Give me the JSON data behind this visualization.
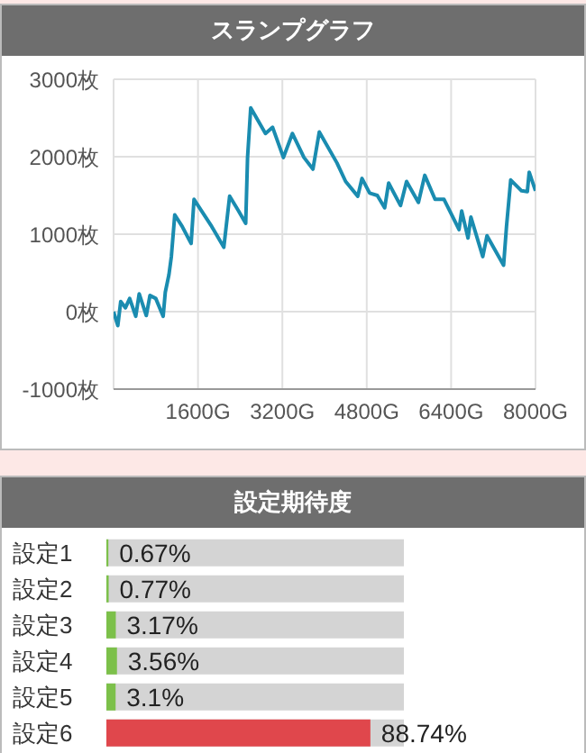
{
  "chart_data": [
    {
      "type": "line",
      "title": "スランプグラフ",
      "x": [
        0,
        80,
        135,
        225,
        305,
        420,
        485,
        620,
        690,
        800,
        940,
        980,
        1050,
        1095,
        1160,
        1300,
        1470,
        1525,
        1860,
        2090,
        2200,
        2370,
        2505,
        2540,
        2600,
        2880,
        3015,
        3220,
        3390,
        3610,
        3780,
        3900,
        4235,
        4400,
        4630,
        4710,
        4855,
        5000,
        5140,
        5215,
        5440,
        5555,
        5780,
        5900,
        6095,
        6265,
        6550,
        6600,
        6720,
        6775,
        7000,
        7080,
        7395,
        7450,
        7530,
        7735,
        7845,
        7880,
        8000
      ],
      "series": [
        {
          "color": "#1a8cb0",
          "values": [
            0,
            -180,
            130,
            50,
            170,
            -60,
            230,
            -50,
            210,
            170,
            -60,
            250,
            480,
            710,
            1250,
            1100,
            880,
            1450,
            1100,
            830,
            1490,
            1300,
            1140,
            1990,
            2630,
            2300,
            2380,
            1990,
            2300,
            1990,
            1840,
            2320,
            1920,
            1680,
            1490,
            1720,
            1530,
            1500,
            1340,
            1660,
            1370,
            1680,
            1410,
            1760,
            1450,
            1450,
            1060,
            1300,
            950,
            1220,
            710,
            980,
            600,
            1100,
            1700,
            1560,
            1550,
            1800,
            1560
          ]
        }
      ],
      "xlim": [
        0,
        8000
      ],
      "xticks": [
        {
          "value": 0,
          "label": null
        },
        {
          "value": 1600,
          "label": "1600G"
        },
        {
          "value": 3200,
          "label": "3200G"
        },
        {
          "value": 4800,
          "label": "4800G"
        },
        {
          "value": 6400,
          "label": "6400G"
        },
        {
          "value": 8000,
          "label": "8000G"
        }
      ],
      "ylim": [
        -1000,
        3000
      ],
      "yticks": [
        {
          "value": -1000,
          "label": "-1000枚"
        },
        {
          "value": 0,
          "label": "0枚"
        },
        {
          "value": 1000,
          "label": "1000枚"
        },
        {
          "value": 2000,
          "label": "2000枚"
        },
        {
          "value": 3000,
          "label": "3000枚"
        }
      ],
      "grid": true,
      "marker": "none",
      "line_style": "solid"
    },
    {
      "type": "bar",
      "title": "設定期待度",
      "orientation": "horizontal",
      "categories": [
        "設定1",
        "設定2",
        "設定3",
        "設定4",
        "設定5",
        "設定6"
      ],
      "values": [
        0.67,
        0.77,
        3.17,
        3.56,
        3.1,
        88.74
      ],
      "colors": [
        "#7cc04a",
        "#7cc04a",
        "#7cc04a",
        "#7cc04a",
        "#7cc04a",
        "#e0474c"
      ],
      "value_labels": [
        "0.67%",
        "0.77%",
        "3.17%",
        "3.56%",
        "3.1%",
        "88.74%"
      ],
      "xlim": [
        0,
        100
      ],
      "tick_labels": "y"
    }
  ]
}
